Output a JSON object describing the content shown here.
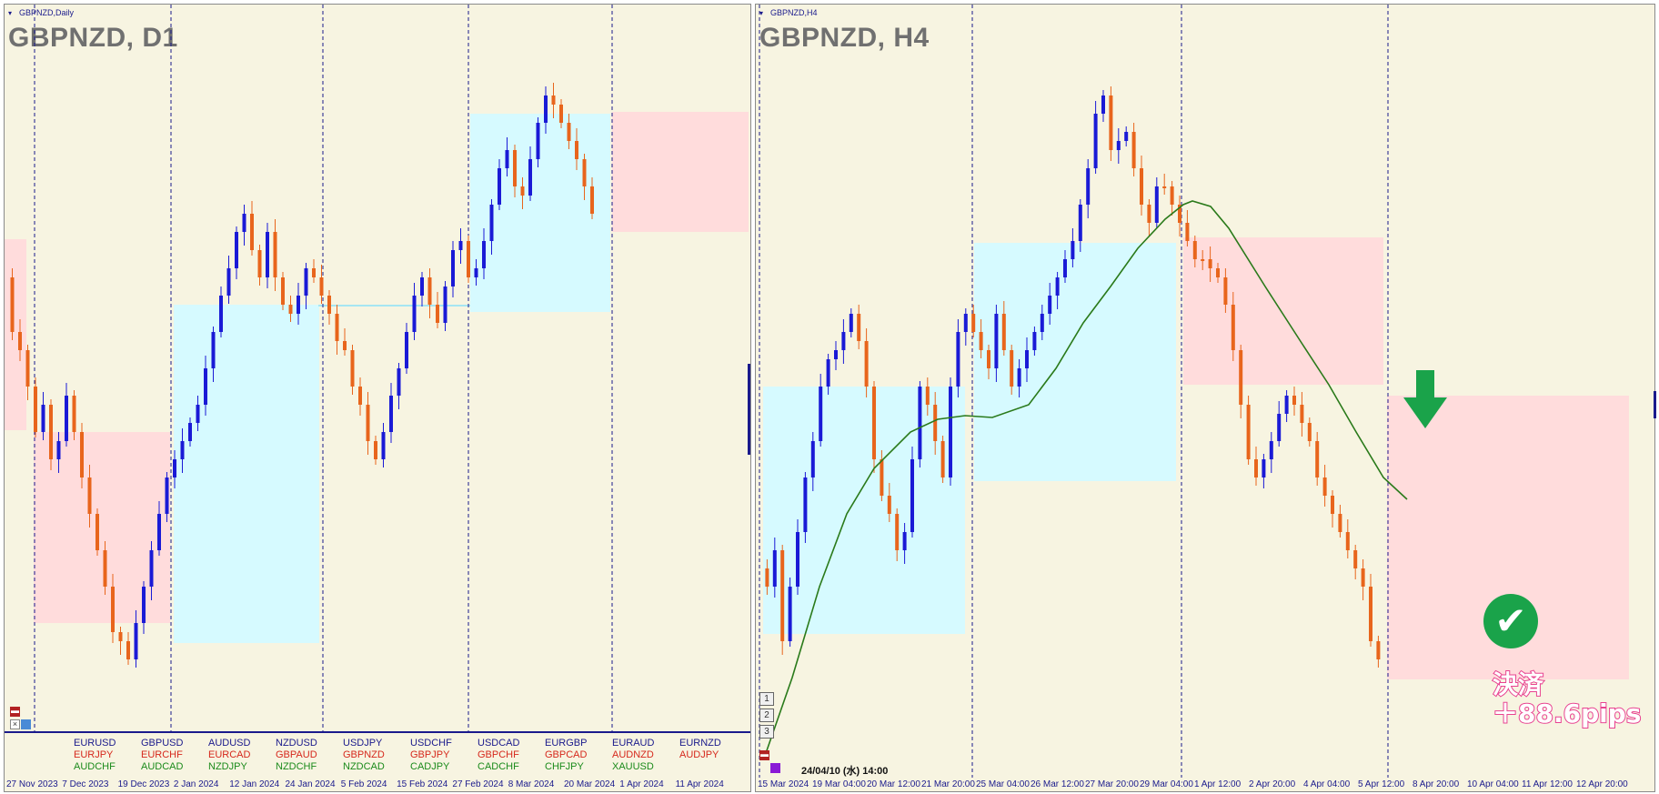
{
  "left_chart": {
    "window_title": "GBPNZD,Daily",
    "title": "GBPNZD, D1",
    "x_labels": [
      "27 Nov 2023",
      "7 Dec 2023",
      "19 Dec 2023",
      "2 Jan 2024",
      "12 Jan 2024",
      "24 Jan 2024",
      "5 Feb 2024",
      "15 Feb 2024",
      "27 Feb 2024",
      "8 Mar 2024",
      "20 Mar 2024",
      "1 Apr 2024",
      "11 Apr 2024"
    ],
    "pairs": [
      {
        "top": "EURUSD",
        "mid": "EURJPY",
        "bot": "AUDCHF"
      },
      {
        "top": "GBPUSD",
        "mid": "EURCHF",
        "bot": "AUDCAD"
      },
      {
        "top": "AUDUSD",
        "mid": "EURCAD",
        "bot": "NZDJPY"
      },
      {
        "top": "NZDUSD",
        "mid": "GBPAUD",
        "bot": "NZDCHF"
      },
      {
        "top": "USDJPY",
        "mid": "GBPNZD",
        "bot": "NZDCAD"
      },
      {
        "top": "USDCHF",
        "mid": "GBPJPY",
        "bot": "CADJPY"
      },
      {
        "top": "USDCAD",
        "mid": "GBPCHF",
        "bot": "CADCHF"
      },
      {
        "top": "EURGBP",
        "mid": "GBPCAD",
        "bot": "CHFJPY"
      },
      {
        "top": "EURAUD",
        "mid": "AUDNZD",
        "bot": "XAUUSD"
      },
      {
        "top": "EURNZD",
        "mid": "AUDJPY",
        "bot": ""
      }
    ]
  },
  "right_chart": {
    "window_title": "GBPNZD,H4",
    "title": "GBPNZD, H4",
    "x_labels": [
      "15 Mar 2024",
      "19 Mar 04:00",
      "20 Mar 12:00",
      "21 Mar 20:00",
      "25 Mar 04:00",
      "26 Mar 12:00",
      "27 Mar 20:00",
      "29 Mar 04:00",
      "1 Apr 12:00",
      "2 Apr 20:00",
      "4 Apr 04:00",
      "5 Apr 12:00",
      "8 Apr 20:00",
      "10 Apr 04:00",
      "11 Apr 12:00",
      "12 Apr 20:00"
    ],
    "timestamp": "24/04/10 (水) 14:00",
    "timeframe_buttons": [
      "1",
      "2",
      "3"
    ],
    "result_label": "決済",
    "result_value": "＋88.6pips"
  },
  "colors": {
    "bull": "#1a1ad6",
    "bear": "#e8651c",
    "bg": "#f7f4e1",
    "support_zone": "#d6faff",
    "resistance_zone": "#ffdcdc",
    "ma_line": "#2a7a1a",
    "accent": "#1a1a8c"
  },
  "icons": {
    "entry_arrow": "down-arrow-icon",
    "result_check": "check-circle-icon"
  }
}
